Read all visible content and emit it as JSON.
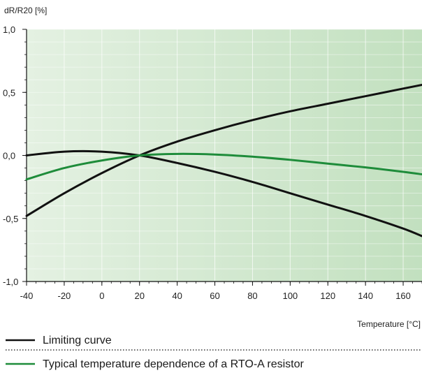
{
  "chart_data": {
    "type": "line",
    "ylabel": "dR/R20 [%]",
    "xlabel": "Temperature [°C]",
    "xlim": [
      -40,
      170
    ],
    "ylim": [
      -1.0,
      1.0
    ],
    "x_ticks": [
      -40,
      -20,
      0,
      20,
      40,
      60,
      80,
      100,
      120,
      140,
      160
    ],
    "x_tick_labels": [
      "-40",
      "-20",
      "0",
      "20",
      "40",
      "60",
      "80",
      "100",
      "120",
      "140",
      "160"
    ],
    "y_ticks": [
      1.0,
      0.5,
      0.0,
      -0.5,
      -1.0
    ],
    "y_tick_labels": [
      "1,0",
      "0,5",
      "0,0",
      "-0,5",
      "-1,0"
    ],
    "grid": true,
    "background_gradient": [
      "#e4f1e2",
      "#c2e0bf"
    ],
    "series": [
      {
        "name": "Limiting curve",
        "color": "#111111",
        "x": [
          -40,
          -20,
          0,
          20,
          40,
          60,
          80,
          100,
          120,
          140,
          160,
          170
        ],
        "y": [
          -0.48,
          -0.3,
          -0.14,
          0.0,
          0.11,
          0.2,
          0.28,
          0.35,
          0.41,
          0.47,
          0.53,
          0.56
        ]
      },
      {
        "name": "Limiting curve",
        "color": "#111111",
        "x": [
          -40,
          -20,
          0,
          20,
          40,
          60,
          80,
          100,
          120,
          140,
          160,
          170
        ],
        "y": [
          0.0,
          0.03,
          0.03,
          0.0,
          -0.06,
          -0.13,
          -0.21,
          -0.3,
          -0.39,
          -0.48,
          -0.58,
          -0.64
        ]
      },
      {
        "name": "Typical temperature dependence of a RTO-A resistor",
        "color": "#1e8c3a",
        "x": [
          -40,
          -20,
          0,
          20,
          40,
          60,
          80,
          100,
          120,
          140,
          160,
          170
        ],
        "y": [
          -0.19,
          -0.1,
          -0.04,
          0.0,
          0.012,
          0.007,
          -0.01,
          -0.035,
          -0.065,
          -0.095,
          -0.13,
          -0.15
        ]
      }
    ],
    "legend": [
      {
        "label": "Limiting curve",
        "color": "#111111"
      },
      {
        "label": "Typical temperature dependence of a RTO-A resistor",
        "color": "#1e8c3a"
      }
    ]
  }
}
